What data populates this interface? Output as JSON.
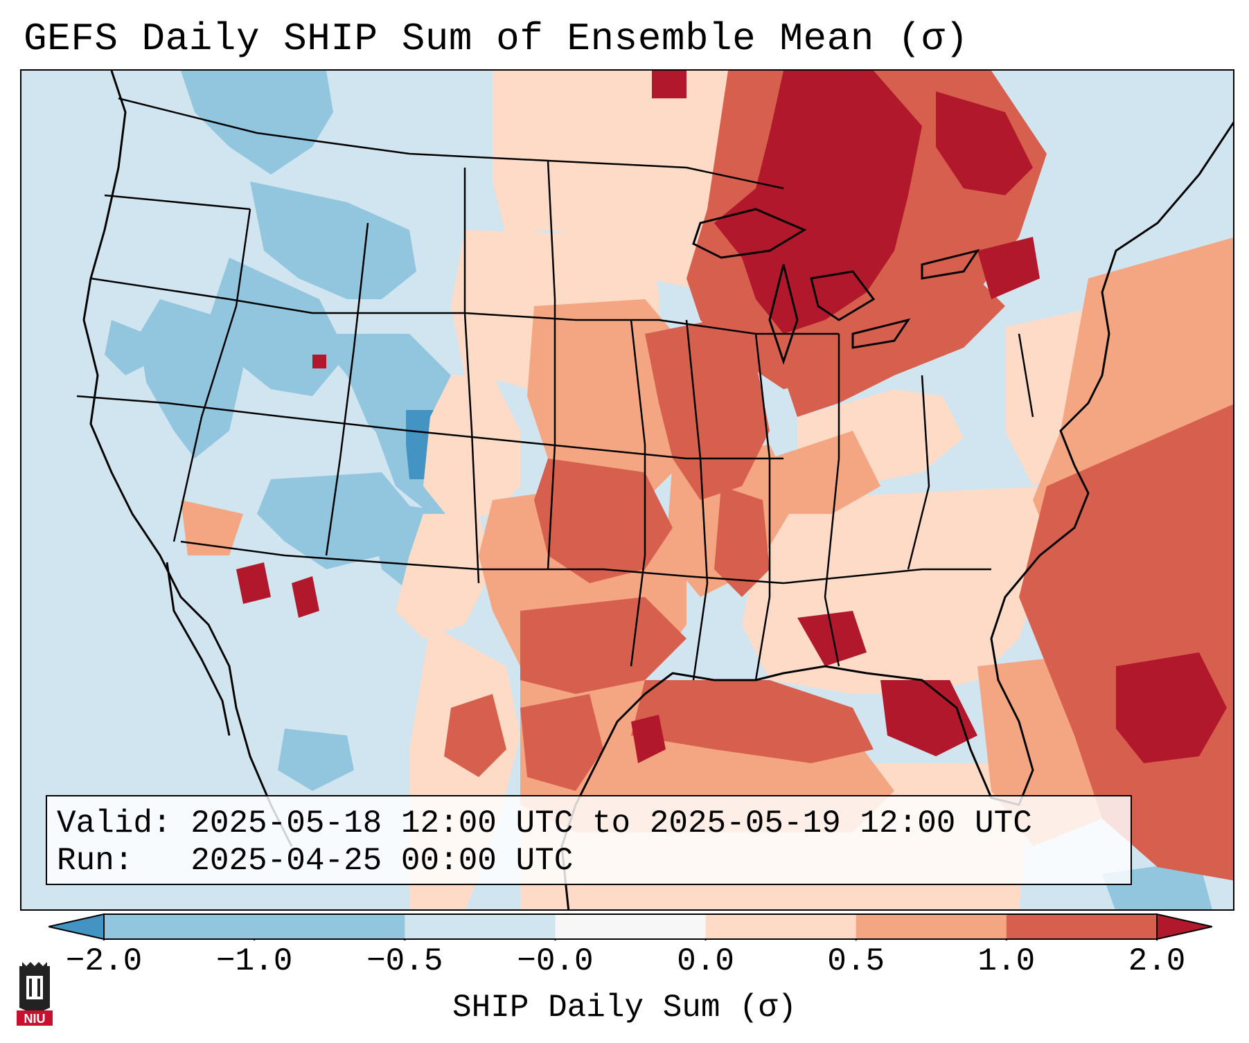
{
  "title": "GEFS Daily SHIP Sum of Ensemble Mean (σ)",
  "info": {
    "valid_line": "Valid: 2025-05-18 12:00 UTC to 2025-05-19 12:00 UTC",
    "run_line": "Run:   2025-04-25 00:00 UTC"
  },
  "colorbar": {
    "label": "SHIP Daily Sum (σ)",
    "tick_labels": [
      "−2.0",
      "−1.0",
      "−0.5",
      "−0.0",
      "0.0",
      "0.5",
      "1.0",
      "2.0"
    ],
    "bins": [
      {
        "from": -2.0,
        "to": -1.0,
        "color": "#92c5de"
      },
      {
        "from": -1.0,
        "to": -0.5,
        "color": "#92c5de"
      },
      {
        "from": -0.5,
        "to": 0.0,
        "color": "#d1e5f0"
      },
      {
        "from": 0.0,
        "to": 0.0,
        "color": "#f7f7f7"
      },
      {
        "from": 0.0,
        "to": 0.5,
        "color": "#fddbc7"
      },
      {
        "from": 0.5,
        "to": 1.0,
        "color": "#f4a582"
      },
      {
        "from": 1.0,
        "to": 2.0,
        "color": "#d6604d"
      }
    ],
    "under_color": "#4393c3",
    "over_color": "#b2182b",
    "extend": "both"
  },
  "palette": {
    "strong_negative": "#4393c3",
    "moderate_negative": "#92c5de",
    "weak_negative": "#d1e5f0",
    "neutral": "#f7f7f7",
    "weak_positive": "#fddbc7",
    "moderate_positive": "#f4a582",
    "strong_positive": "#d6604d",
    "extreme_positive": "#b2182b"
  },
  "logo": {
    "text": "NIU",
    "color": "#c8102e"
  }
}
